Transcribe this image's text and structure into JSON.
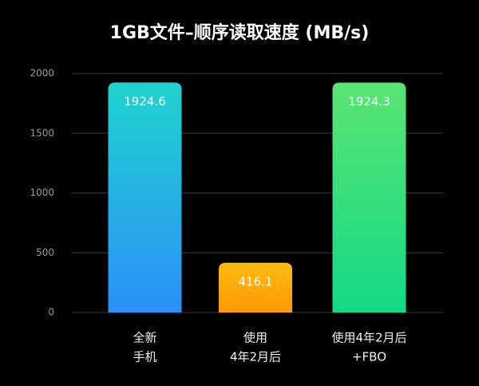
{
  "chart_data": {
    "type": "bar",
    "title": "1GB文件–顺序读取速度 (MB/s)",
    "categories": [
      [
        "全新",
        "手机"
      ],
      [
        "使用",
        "4年2月后"
      ],
      [
        "使用4年2月后",
        "+FBO"
      ]
    ],
    "values": [
      1924.6,
      416.1,
      1924.3
    ],
    "colors": [
      [
        "#1fd3cf",
        "#2b8ff8"
      ],
      [
        "#ffbb12",
        "#ff9900"
      ],
      [
        "#5ae472",
        "#12d986"
      ]
    ],
    "ylim": [
      0,
      2000
    ],
    "yticks": [
      0,
      500,
      1000,
      1500,
      2000
    ],
    "grid": true
  }
}
